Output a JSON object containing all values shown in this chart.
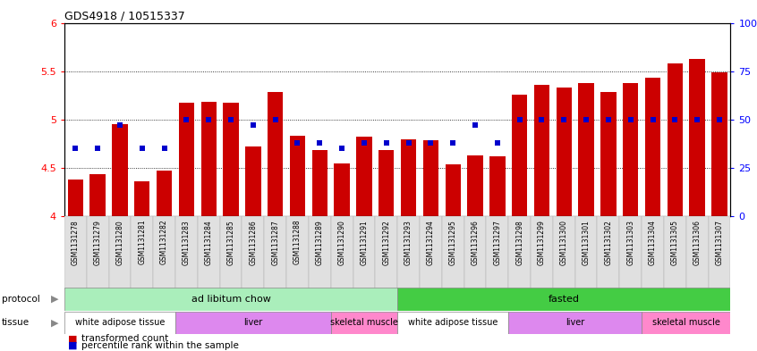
{
  "title": "GDS4918 / 10515337",
  "samples": [
    "GSM1131278",
    "GSM1131279",
    "GSM1131280",
    "GSM1131281",
    "GSM1131282",
    "GSM1131283",
    "GSM1131284",
    "GSM1131285",
    "GSM1131286",
    "GSM1131287",
    "GSM1131288",
    "GSM1131289",
    "GSM1131290",
    "GSM1131291",
    "GSM1131292",
    "GSM1131293",
    "GSM1131294",
    "GSM1131295",
    "GSM1131296",
    "GSM1131297",
    "GSM1131298",
    "GSM1131299",
    "GSM1131300",
    "GSM1131301",
    "GSM1131302",
    "GSM1131303",
    "GSM1131304",
    "GSM1131305",
    "GSM1131306",
    "GSM1131307"
  ],
  "bar_values": [
    4.38,
    4.43,
    4.95,
    4.36,
    4.47,
    5.17,
    5.18,
    5.17,
    4.72,
    5.28,
    4.83,
    4.68,
    4.54,
    4.82,
    4.68,
    4.79,
    4.78,
    4.53,
    4.63,
    4.62,
    5.26,
    5.36,
    5.33,
    5.38,
    5.28,
    5.38,
    5.43,
    5.58,
    5.63,
    5.49
  ],
  "dot_values_pct": [
    35,
    35,
    47,
    35,
    35,
    50,
    50,
    50,
    47,
    50,
    38,
    38,
    35,
    38,
    38,
    38,
    38,
    38,
    47,
    38,
    50,
    50,
    50,
    50,
    50,
    50,
    50,
    50,
    50,
    50
  ],
  "bar_color": "#cc0000",
  "dot_color": "#0000cc",
  "ylim_left": [
    4.0,
    6.0
  ],
  "ylim_right": [
    0,
    100
  ],
  "yticks_left": [
    4.0,
    4.5,
    5.0,
    5.5,
    6.0
  ],
  "ytick_labels_left": [
    "4",
    "4.5",
    "5",
    "5.5",
    "6"
  ],
  "yticks_right": [
    0,
    25,
    50,
    75,
    100
  ],
  "ytick_labels_right": [
    "0",
    "25",
    "50",
    "75",
    "100%"
  ],
  "grid_lines": [
    4.5,
    5.0,
    5.5
  ],
  "protocol_groups": [
    {
      "label": "ad libitum chow",
      "start": 0,
      "end": 15,
      "color": "#aaeebb"
    },
    {
      "label": "fasted",
      "start": 15,
      "end": 30,
      "color": "#44cc44"
    }
  ],
  "tissue_groups": [
    {
      "label": "white adipose tissue",
      "start": 0,
      "end": 5,
      "color": "#ffffff"
    },
    {
      "label": "liver",
      "start": 5,
      "end": 12,
      "color": "#dd88ee"
    },
    {
      "label": "skeletal muscle",
      "start": 12,
      "end": 15,
      "color": "#ff88cc"
    },
    {
      "label": "white adipose tissue",
      "start": 15,
      "end": 20,
      "color": "#ffffff"
    },
    {
      "label": "liver",
      "start": 20,
      "end": 26,
      "color": "#dd88ee"
    },
    {
      "label": "skeletal muscle",
      "start": 26,
      "end": 30,
      "color": "#ff88cc"
    }
  ],
  "legend_items": [
    {
      "label": "transformed count",
      "color": "#cc0000"
    },
    {
      "label": "percentile rank within the sample",
      "color": "#0000cc"
    }
  ]
}
